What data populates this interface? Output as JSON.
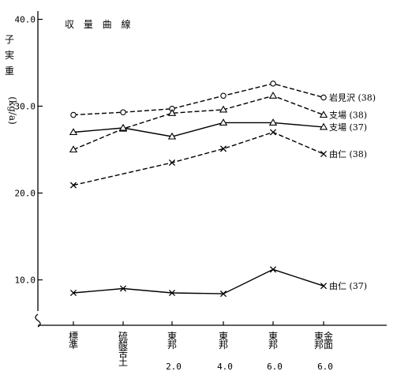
{
  "chart_data": {
    "type": "line",
    "title": "収 量 曲 線",
    "ylabel": "子実重(kg/a)",
    "ylim": [
      0,
      40
    ],
    "yticks": [
      "10.0",
      "20.0",
      "30.0",
      "40.0"
    ],
    "grid": false,
    "categories": [
      {
        "lines": [
          "標",
          "準"
        ],
        "num": ""
      },
      {
        "lines": [
          "硫",
          "酸",
          "苦",
          "土"
        ],
        "num": ""
      },
      {
        "lines": [
          "東",
          "邦"
        ],
        "num": "2.0"
      },
      {
        "lines": [
          "東",
          "邦"
        ],
        "num": "4.0"
      },
      {
        "lines": [
          "東",
          "邦"
        ],
        "num": "6.0"
      },
      {
        "lines": [
          "東金",
          "邦面"
        ],
        "num": "6.0"
      }
    ],
    "series": [
      {
        "name": "岩見沢 (38)",
        "marker": "circle",
        "dashed": true,
        "values": [
          29.0,
          29.3,
          29.7,
          31.2,
          32.6,
          31.0
        ]
      },
      {
        "name": "支場 (38)",
        "marker": "triangle",
        "dashed": true,
        "values": [
          25.0,
          27.4,
          29.2,
          29.6,
          31.2,
          29.0
        ]
      },
      {
        "name": "支場 (37)",
        "marker": "triangle",
        "dashed": false,
        "values": [
          27.0,
          27.5,
          26.5,
          28.1,
          28.1,
          27.6
        ]
      },
      {
        "name": "由仁 (38)",
        "marker": "x",
        "dashed": true,
        "values": [
          20.9,
          null,
          23.5,
          25.1,
          27.0,
          24.5
        ]
      },
      {
        "name": "由仁 (37)",
        "marker": "x",
        "dashed": false,
        "values": [
          8.5,
          9.0,
          8.5,
          8.4,
          11.2,
          9.3
        ]
      }
    ]
  }
}
